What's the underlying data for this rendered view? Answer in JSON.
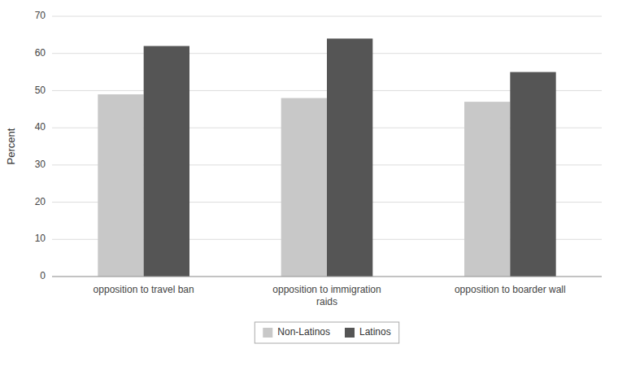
{
  "chart_data": {
    "type": "bar",
    "categories": [
      "opposition to travel ban",
      "opposition to immigration\nraids",
      "opposition to boarder wall"
    ],
    "series": [
      {
        "name": "Non-Latinos",
        "color": "#c8c8c8",
        "values": [
          49,
          48,
          47
        ]
      },
      {
        "name": "Latinos",
        "color": "#555555",
        "values": [
          62,
          64,
          55
        ]
      }
    ],
    "ylabel": "Percent",
    "ylim": [
      0,
      70
    ],
    "yticks": [
      0,
      10,
      20,
      30,
      40,
      50,
      60,
      70
    ],
    "grid": true,
    "legend": "bottom"
  }
}
